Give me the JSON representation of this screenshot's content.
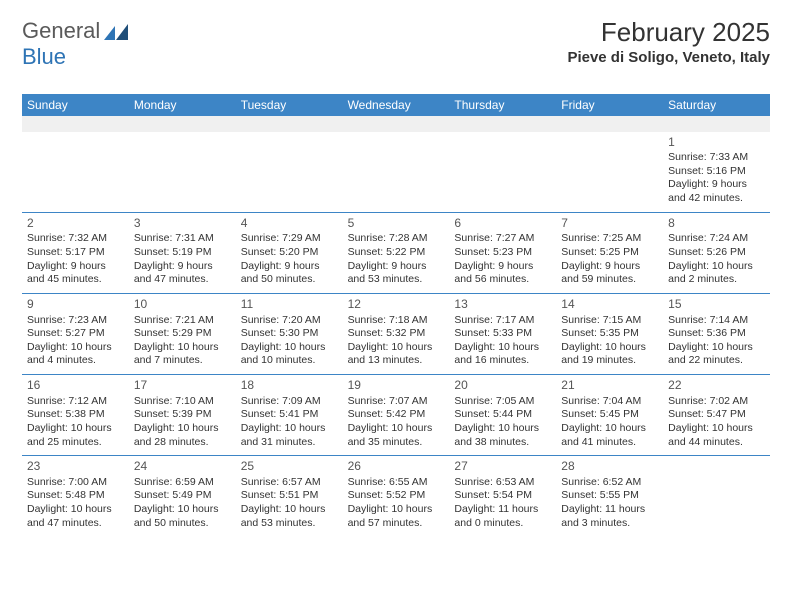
{
  "logo": {
    "part1": "General",
    "part2": "Blue"
  },
  "title": {
    "month": "February 2025",
    "location": "Pieve di Soligo, Veneto, Italy"
  },
  "colors": {
    "header_bg": "#3d85c6",
    "header_text": "#ffffff",
    "rule": "#3d85c6",
    "shade": "#f0f0f0",
    "text": "#333333",
    "logo_gray": "#5a5a5a",
    "logo_blue": "#2e74b5"
  },
  "weekdays": [
    "Sunday",
    "Monday",
    "Tuesday",
    "Wednesday",
    "Thursday",
    "Friday",
    "Saturday"
  ],
  "weeks": [
    [
      {
        "blank": true
      },
      {
        "blank": true
      },
      {
        "blank": true
      },
      {
        "blank": true
      },
      {
        "blank": true
      },
      {
        "blank": true
      },
      {
        "num": "1",
        "sunrise": "Sunrise: 7:33 AM",
        "sunset": "Sunset: 5:16 PM",
        "daylight": "Daylight: 9 hours and 42 minutes."
      }
    ],
    [
      {
        "num": "2",
        "sunrise": "Sunrise: 7:32 AM",
        "sunset": "Sunset: 5:17 PM",
        "daylight": "Daylight: 9 hours and 45 minutes."
      },
      {
        "num": "3",
        "sunrise": "Sunrise: 7:31 AM",
        "sunset": "Sunset: 5:19 PM",
        "daylight": "Daylight: 9 hours and 47 minutes."
      },
      {
        "num": "4",
        "sunrise": "Sunrise: 7:29 AM",
        "sunset": "Sunset: 5:20 PM",
        "daylight": "Daylight: 9 hours and 50 minutes."
      },
      {
        "num": "5",
        "sunrise": "Sunrise: 7:28 AM",
        "sunset": "Sunset: 5:22 PM",
        "daylight": "Daylight: 9 hours and 53 minutes."
      },
      {
        "num": "6",
        "sunrise": "Sunrise: 7:27 AM",
        "sunset": "Sunset: 5:23 PM",
        "daylight": "Daylight: 9 hours and 56 minutes."
      },
      {
        "num": "7",
        "sunrise": "Sunrise: 7:25 AM",
        "sunset": "Sunset: 5:25 PM",
        "daylight": "Daylight: 9 hours and 59 minutes."
      },
      {
        "num": "8",
        "sunrise": "Sunrise: 7:24 AM",
        "sunset": "Sunset: 5:26 PM",
        "daylight": "Daylight: 10 hours and 2 minutes."
      }
    ],
    [
      {
        "num": "9",
        "sunrise": "Sunrise: 7:23 AM",
        "sunset": "Sunset: 5:27 PM",
        "daylight": "Daylight: 10 hours and 4 minutes."
      },
      {
        "num": "10",
        "sunrise": "Sunrise: 7:21 AM",
        "sunset": "Sunset: 5:29 PM",
        "daylight": "Daylight: 10 hours and 7 minutes."
      },
      {
        "num": "11",
        "sunrise": "Sunrise: 7:20 AM",
        "sunset": "Sunset: 5:30 PM",
        "daylight": "Daylight: 10 hours and 10 minutes."
      },
      {
        "num": "12",
        "sunrise": "Sunrise: 7:18 AM",
        "sunset": "Sunset: 5:32 PM",
        "daylight": "Daylight: 10 hours and 13 minutes."
      },
      {
        "num": "13",
        "sunrise": "Sunrise: 7:17 AM",
        "sunset": "Sunset: 5:33 PM",
        "daylight": "Daylight: 10 hours and 16 minutes."
      },
      {
        "num": "14",
        "sunrise": "Sunrise: 7:15 AM",
        "sunset": "Sunset: 5:35 PM",
        "daylight": "Daylight: 10 hours and 19 minutes."
      },
      {
        "num": "15",
        "sunrise": "Sunrise: 7:14 AM",
        "sunset": "Sunset: 5:36 PM",
        "daylight": "Daylight: 10 hours and 22 minutes."
      }
    ],
    [
      {
        "num": "16",
        "sunrise": "Sunrise: 7:12 AM",
        "sunset": "Sunset: 5:38 PM",
        "daylight": "Daylight: 10 hours and 25 minutes."
      },
      {
        "num": "17",
        "sunrise": "Sunrise: 7:10 AM",
        "sunset": "Sunset: 5:39 PM",
        "daylight": "Daylight: 10 hours and 28 minutes."
      },
      {
        "num": "18",
        "sunrise": "Sunrise: 7:09 AM",
        "sunset": "Sunset: 5:41 PM",
        "daylight": "Daylight: 10 hours and 31 minutes."
      },
      {
        "num": "19",
        "sunrise": "Sunrise: 7:07 AM",
        "sunset": "Sunset: 5:42 PM",
        "daylight": "Daylight: 10 hours and 35 minutes."
      },
      {
        "num": "20",
        "sunrise": "Sunrise: 7:05 AM",
        "sunset": "Sunset: 5:44 PM",
        "daylight": "Daylight: 10 hours and 38 minutes."
      },
      {
        "num": "21",
        "sunrise": "Sunrise: 7:04 AM",
        "sunset": "Sunset: 5:45 PM",
        "daylight": "Daylight: 10 hours and 41 minutes."
      },
      {
        "num": "22",
        "sunrise": "Sunrise: 7:02 AM",
        "sunset": "Sunset: 5:47 PM",
        "daylight": "Daylight: 10 hours and 44 minutes."
      }
    ],
    [
      {
        "num": "23",
        "sunrise": "Sunrise: 7:00 AM",
        "sunset": "Sunset: 5:48 PM",
        "daylight": "Daylight: 10 hours and 47 minutes."
      },
      {
        "num": "24",
        "sunrise": "Sunrise: 6:59 AM",
        "sunset": "Sunset: 5:49 PM",
        "daylight": "Daylight: 10 hours and 50 minutes."
      },
      {
        "num": "25",
        "sunrise": "Sunrise: 6:57 AM",
        "sunset": "Sunset: 5:51 PM",
        "daylight": "Daylight: 10 hours and 53 minutes."
      },
      {
        "num": "26",
        "sunrise": "Sunrise: 6:55 AM",
        "sunset": "Sunset: 5:52 PM",
        "daylight": "Daylight: 10 hours and 57 minutes."
      },
      {
        "num": "27",
        "sunrise": "Sunrise: 6:53 AM",
        "sunset": "Sunset: 5:54 PM",
        "daylight": "Daylight: 11 hours and 0 minutes."
      },
      {
        "num": "28",
        "sunrise": "Sunrise: 6:52 AM",
        "sunset": "Sunset: 5:55 PM",
        "daylight": "Daylight: 11 hours and 3 minutes."
      },
      {
        "blank": true,
        "noshade": true
      }
    ]
  ]
}
